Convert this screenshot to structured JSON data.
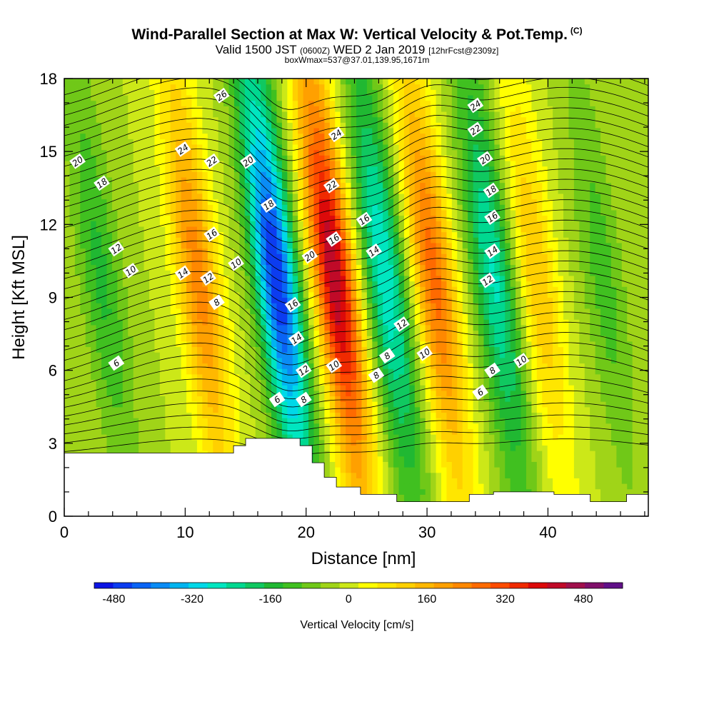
{
  "titles": {
    "main": "Wind-Parallel Section at Max W: Vertical Velocity & Pot.Temp.",
    "copyright": "(C)",
    "valid_prefix": "Valid 1500 JST",
    "valid_utc": "(0600Z)",
    "valid_date": "WED 2 Jan 2019",
    "forecast": "[12hrFcst@2309z]",
    "box_line": "boxWmax=537@37.01,139.95,1671m"
  },
  "chart_data": {
    "type": "heatmap",
    "title": "Wind-Parallel Section at Max W: Vertical Velocity & Pot.Temp.",
    "xlabel": "Distance [nm]",
    "ylabel": "Height [Kft MSL]",
    "xlim": [
      0,
      48.3
    ],
    "ylim": [
      0,
      18
    ],
    "x_ticks": [
      "0",
      "10",
      "20",
      "30",
      "40"
    ],
    "y_ticks": [
      "0",
      "3",
      "6",
      "9",
      "12",
      "15",
      "18"
    ],
    "colorbar": {
      "label": "Vertical Velocity [cm/s]",
      "range": [
        -520,
        560
      ],
      "step": 40,
      "tick_labels": [
        "-480",
        "-320",
        "-160",
        "0",
        "160",
        "320",
        "480"
      ],
      "colors": [
        "#0c14e4",
        "#0c3cf0",
        "#0a64f5",
        "#0a8cf5",
        "#00b4f0",
        "#00d8e8",
        "#00e6c0",
        "#00d890",
        "#10c860",
        "#20b832",
        "#40c020",
        "#70c818",
        "#a0d418",
        "#cce818",
        "#ffff00",
        "#ffe600",
        "#ffd000",
        "#ffb800",
        "#ffa000",
        "#ff8800",
        "#ff6a00",
        "#ff4c00",
        "#f02a00",
        "#dc0a0a",
        "#c00a28",
        "#a0104c",
        "#80106a",
        "#601088"
      ]
    },
    "vertical_velocity_bands": [
      {
        "center_x": 3.5,
        "peak": -130
      },
      {
        "center_x": 11.5,
        "peak": 260
      },
      {
        "center_x": 18.0,
        "peak": -480
      },
      {
        "center_x": 22.8,
        "peak": 480
      },
      {
        "center_x": 27.0,
        "peak": -280
      },
      {
        "center_x": 31.0,
        "peak": 300
      },
      {
        "center_x": 36.0,
        "peak": -250
      },
      {
        "center_x": 39.5,
        "peak": 160
      },
      {
        "center_x": 45.0,
        "peak": -100
      }
    ],
    "terrain_kft": [
      [
        0,
        2.6
      ],
      [
        14,
        2.6
      ],
      [
        14,
        2.9
      ],
      [
        15,
        2.9
      ],
      [
        15,
        3.2
      ],
      [
        19.5,
        3.2
      ],
      [
        19.5,
        2.9
      ],
      [
        20.5,
        2.9
      ],
      [
        20.5,
        2.2
      ],
      [
        21.5,
        2.2
      ],
      [
        21.5,
        1.6
      ],
      [
        22.5,
        1.6
      ],
      [
        22.5,
        1.2
      ],
      [
        24.5,
        1.2
      ],
      [
        24.5,
        0.9
      ],
      [
        27.5,
        0.9
      ],
      [
        27.5,
        0.6
      ],
      [
        33.5,
        0.6
      ],
      [
        33.5,
        0.9
      ],
      [
        35.5,
        0.9
      ],
      [
        35.5,
        1.0
      ],
      [
        40.5,
        1.0
      ],
      [
        40.5,
        0.9
      ],
      [
        43.5,
        0.9
      ],
      [
        43.5,
        0.6
      ],
      [
        46.5,
        0.6
      ],
      [
        46.5,
        0.9
      ],
      [
        48.3,
        0.9
      ]
    ],
    "theta_contour_labels": [
      {
        "value": "26",
        "x": 13.0,
        "y": 17.3
      },
      {
        "value": "24",
        "x": 22.5,
        "y": 15.7
      },
      {
        "value": "24",
        "x": 34.0,
        "y": 16.9
      },
      {
        "value": "22",
        "x": 34.0,
        "y": 15.9
      },
      {
        "value": "24",
        "x": 9.8,
        "y": 15.1
      },
      {
        "value": "22",
        "x": 12.2,
        "y": 14.6
      },
      {
        "value": "20",
        "x": 15.2,
        "y": 14.6
      },
      {
        "value": "20",
        "x": 1.1,
        "y": 14.6
      },
      {
        "value": "20",
        "x": 34.8,
        "y": 14.7
      },
      {
        "value": "18",
        "x": 3.1,
        "y": 13.7
      },
      {
        "value": "22",
        "x": 22.1,
        "y": 13.6
      },
      {
        "value": "18",
        "x": 35.3,
        "y": 13.4
      },
      {
        "value": "18",
        "x": 16.9,
        "y": 12.8
      },
      {
        "value": "16",
        "x": 24.8,
        "y": 12.2
      },
      {
        "value": "16",
        "x": 35.4,
        "y": 12.3
      },
      {
        "value": "16",
        "x": 12.2,
        "y": 11.6
      },
      {
        "value": "16",
        "x": 22.3,
        "y": 11.4
      },
      {
        "value": "12",
        "x": 4.3,
        "y": 11.0
      },
      {
        "value": "14",
        "x": 25.6,
        "y": 10.9
      },
      {
        "value": "14",
        "x": 35.4,
        "y": 10.9
      },
      {
        "value": "20",
        "x": 20.3,
        "y": 10.7
      },
      {
        "value": "10",
        "x": 14.2,
        "y": 10.4
      },
      {
        "value": "10",
        "x": 5.5,
        "y": 10.1
      },
      {
        "value": "14",
        "x": 9.8,
        "y": 10.0
      },
      {
        "value": "12",
        "x": 11.9,
        "y": 9.8
      },
      {
        "value": "12",
        "x": 35.0,
        "y": 9.7
      },
      {
        "value": "8",
        "x": 12.6,
        "y": 8.8
      },
      {
        "value": "16",
        "x": 18.9,
        "y": 8.7
      },
      {
        "value": "12",
        "x": 27.9,
        "y": 7.9
      },
      {
        "value": "14",
        "x": 19.2,
        "y": 7.3
      },
      {
        "value": "8",
        "x": 26.7,
        "y": 6.6
      },
      {
        "value": "10",
        "x": 29.8,
        "y": 6.7
      },
      {
        "value": "10",
        "x": 37.8,
        "y": 6.4
      },
      {
        "value": "6",
        "x": 4.3,
        "y": 6.3
      },
      {
        "value": "8",
        "x": 35.4,
        "y": 6.0
      },
      {
        "value": "12",
        "x": 19.8,
        "y": 6.0
      },
      {
        "value": "10",
        "x": 22.3,
        "y": 6.2
      },
      {
        "value": "8",
        "x": 25.8,
        "y": 5.8
      },
      {
        "value": "6",
        "x": 34.4,
        "y": 5.1
      },
      {
        "value": "6",
        "x": 17.6,
        "y": 4.8
      },
      {
        "value": "8",
        "x": 19.8,
        "y": 4.8
      }
    ],
    "grid": false,
    "legend": "colorbar-bottom"
  }
}
